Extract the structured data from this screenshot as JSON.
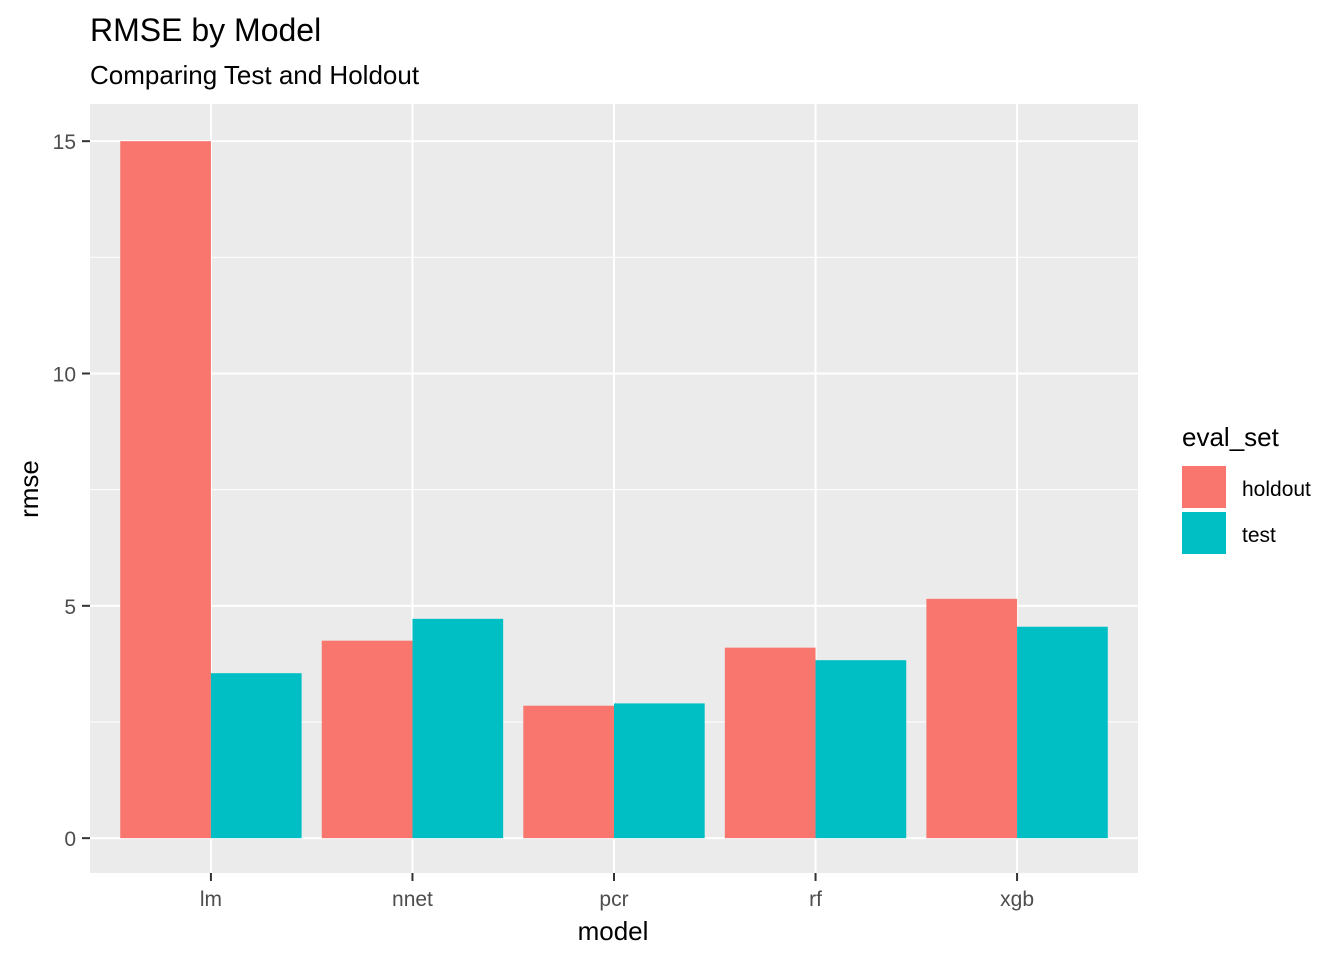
{
  "chart_data": {
    "type": "bar",
    "title": "RMSE by Model",
    "subtitle": "Comparing Test and Holdout",
    "xlabel": "model",
    "ylabel": "rmse",
    "categories": [
      "lm",
      "nnet",
      "pcr",
      "rf",
      "xgb"
    ],
    "series": [
      {
        "name": "holdout",
        "values": [
          15.0,
          4.25,
          2.85,
          4.1,
          5.15
        ],
        "color": "#F8766D"
      },
      {
        "name": "test",
        "values": [
          3.55,
          4.72,
          2.9,
          3.83,
          4.55
        ],
        "color": "#00BFC4"
      }
    ],
    "ylim": [
      -0.75,
      15.8
    ],
    "yticks": [
      0,
      5,
      10,
      15
    ],
    "ytick_labels": [
      "0",
      "5",
      "10",
      "15"
    ],
    "legend": {
      "title": "eval_set",
      "position": "right"
    },
    "grid": true,
    "panel_background": "#EBEBEB",
    "grid_color": "#FFFFFF"
  }
}
